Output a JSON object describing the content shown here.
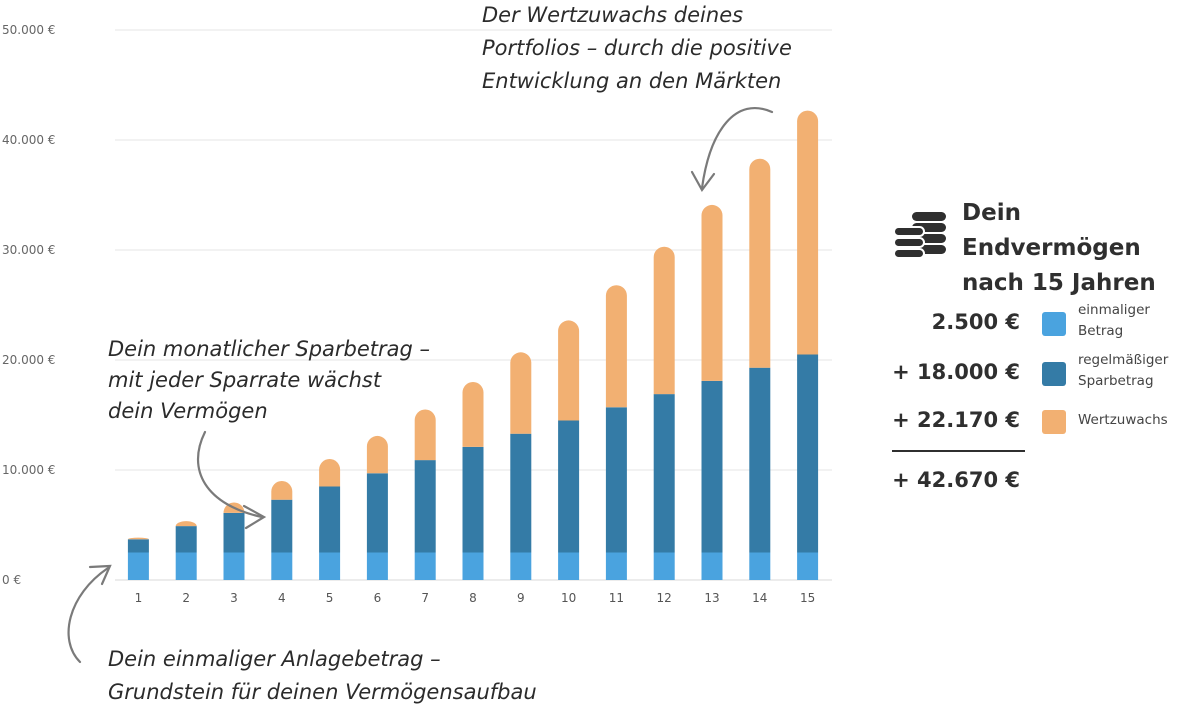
{
  "chart_data": {
    "type": "bar",
    "stacked": true,
    "categories": [
      "1",
      "2",
      "3",
      "4",
      "5",
      "6",
      "7",
      "8",
      "9",
      "10",
      "11",
      "12",
      "13",
      "14",
      "15"
    ],
    "series": [
      {
        "name": "einmaliger Betrag",
        "color": "#4aa3df",
        "values": [
          2500,
          2500,
          2500,
          2500,
          2500,
          2500,
          2500,
          2500,
          2500,
          2500,
          2500,
          2500,
          2500,
          2500,
          2500
        ]
      },
      {
        "name": "regelmäßiger Sparbetrag",
        "color": "#347ba6",
        "values": [
          1200,
          2400,
          3600,
          4800,
          6000,
          7200,
          8400,
          9600,
          10800,
          12000,
          13200,
          14400,
          15600,
          16800,
          18000
        ]
      },
      {
        "name": "Wertzuwachs",
        "color": "#f2b072",
        "values": [
          150,
          450,
          950,
          1700,
          2500,
          3400,
          4600,
          5900,
          7400,
          9100,
          11100,
          13400,
          16000,
          19000,
          22170
        ]
      }
    ],
    "yticks": [
      "0 €",
      "10.000 €",
      "20.000 €",
      "30.000 €",
      "40.000 €",
      "50.000 €"
    ],
    "ylim": [
      0,
      50000
    ],
    "grid": true
  },
  "annotations": {
    "growth": [
      "Der Wertzuwachs deines",
      "Portfolios – durch die positive",
      "Entwicklung an den Märkten"
    ],
    "monthly": [
      "Dein monatlicher Sparbetrag –",
      "mit  jeder Sparrate wächst",
      "dein Vermögen"
    ],
    "initial": [
      "Dein einmaliger Anlagebetrag –",
      "Grundstein für deinen Vermögensaufbau"
    ]
  },
  "summary": {
    "title_line1": "Dein Endvermögen",
    "title_line2": "nach 15 Jahren",
    "icon": "coins-icon",
    "rows": [
      {
        "amount": "2.500  €",
        "label": "einmaliger\nBetrag",
        "color": "#4aa3df"
      },
      {
        "amount": "+ 18.000 €",
        "label": "regelmäßiger\nSparbetrag",
        "color": "#347ba6"
      },
      {
        "amount": "+ 22.170 €",
        "label": "Wertzuwachs",
        "color": "#f2b072"
      }
    ],
    "total": "+ 42.670 €"
  }
}
